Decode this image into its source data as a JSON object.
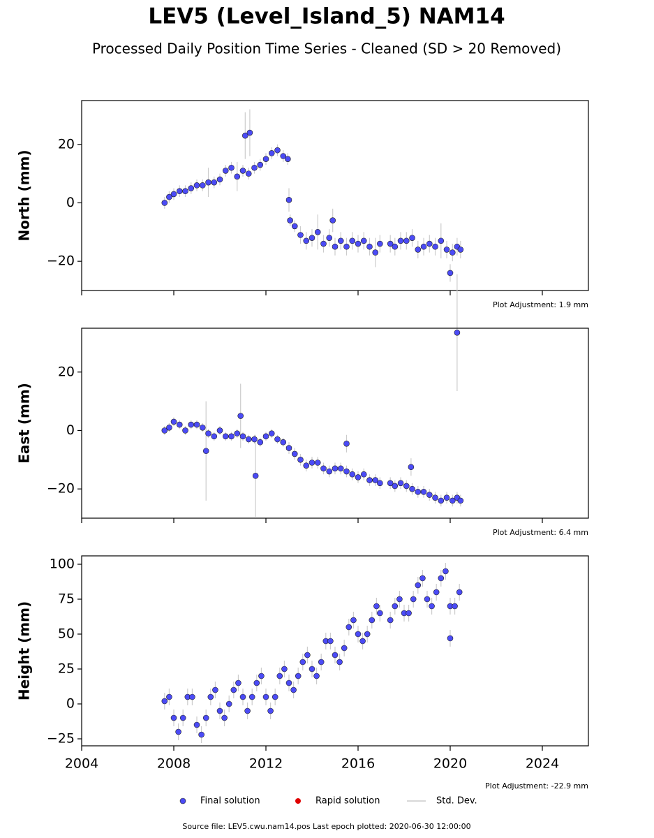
{
  "title": "LEV5 (Level_Island_5) NAM14",
  "subtitle": "Processed Daily Position Time Series - Cleaned (SD > 20 Removed)",
  "legend": [
    {
      "name": "Final solution",
      "color": "#4b4bf5"
    },
    {
      "name": "Rapid solution",
      "color": "#e00000"
    },
    {
      "name": "Std. Dev.",
      "color": "#cccccc"
    }
  ],
  "footer": "Source file: LEV5.cwu.nam14.pos  Last epoch plotted: 2020-06-30 12:00:00",
  "chart_data": [
    {
      "type": "scatter",
      "ylabel": "North (mm)",
      "adjustment": "Plot Adjustment: 1.9 mm",
      "xlim": [
        2004,
        2026
      ],
      "xticks": [
        2004,
        2008,
        2012,
        2016,
        2020,
        2024
      ],
      "ylim": [
        -30,
        35
      ],
      "yticks": [
        {
          "value": -20,
          "label": "−20"
        },
        0,
        20
      ],
      "series": [
        {
          "name": "Final solution",
          "color": "#4b4bf5",
          "x": [
            2007.6,
            2007.8,
            2008.0,
            2008.25,
            2008.5,
            2008.75,
            2009.0,
            2009.25,
            2009.5,
            2009.75,
            2010.0,
            2010.25,
            2010.5,
            2010.75,
            2011.0,
            2011.25,
            2011.5,
            2011.75,
            2012.0,
            2012.25,
            2012.5,
            2012.75,
            2012.95,
            2013.05,
            2013.25,
            2013.5,
            2013.75,
            2014.0,
            2014.25,
            2014.5,
            2014.75,
            2015.0,
            2015.25,
            2015.5,
            2015.75,
            2016.0,
            2016.25,
            2016.5,
            2016.75,
            2016.95,
            2017.4,
            2017.6,
            2017.85,
            2018.1,
            2018.35,
            2018.6,
            2018.85,
            2019.1,
            2019.35,
            2019.6,
            2019.85,
            2020.1,
            2020.3,
            2020.45,
            2011.1,
            2011.3,
            2013.0,
            2020.0,
            2014.9
          ],
          "values": [
            0,
            2,
            3,
            4,
            4,
            5,
            6,
            6,
            7,
            7,
            8,
            11,
            12,
            9,
            11,
            10,
            12,
            13,
            15,
            17,
            18,
            16,
            15,
            -6,
            -8,
            -11,
            -13,
            -12,
            -10,
            -14,
            -12,
            -15,
            -13,
            -15,
            -13,
            -14,
            -13,
            -15,
            -17,
            -14,
            -14,
            -15,
            -13,
            -13,
            -12,
            -16,
            -15,
            -14,
            -15,
            -13,
            -16,
            -17,
            -15,
            -16,
            23,
            24,
            1,
            -24,
            -6
          ],
          "errors": [
            2,
            2,
            2,
            2,
            2,
            2,
            2,
            2,
            5,
            2,
            2,
            2,
            2,
            5,
            2,
            2,
            2,
            2,
            2,
            2,
            2,
            2,
            2,
            2,
            2,
            3,
            3,
            3,
            6,
            3,
            3,
            3,
            3,
            3,
            3,
            3,
            3,
            3,
            5,
            3,
            3,
            3,
            3,
            3,
            3,
            3,
            3,
            3,
            3,
            6,
            3,
            3,
            3,
            3,
            8,
            8,
            4,
            3,
            4
          ]
        }
      ]
    },
    {
      "type": "scatter",
      "ylabel": "East (mm)",
      "adjustment": "Plot Adjustment: 6.4 mm",
      "xlim": [
        2004,
        2026
      ],
      "xticks": [
        2004,
        2008,
        2012,
        2016,
        2020,
        2024
      ],
      "ylim": [
        -30,
        35
      ],
      "yticks": [
        {
          "value": -20,
          "label": "−20"
        },
        0,
        20
      ],
      "series": [
        {
          "name": "Final solution",
          "color": "#4b4bf5",
          "x": [
            2007.6,
            2007.8,
            2008.0,
            2008.25,
            2008.5,
            2008.75,
            2009.0,
            2009.25,
            2009.5,
            2009.75,
            2010.0,
            2010.25,
            2010.5,
            2010.75,
            2011.0,
            2011.25,
            2011.5,
            2011.75,
            2012.0,
            2012.25,
            2012.5,
            2012.75,
            2013.0,
            2013.25,
            2013.5,
            2013.75,
            2014.0,
            2014.25,
            2014.5,
            2014.75,
            2015.0,
            2015.25,
            2015.5,
            2015.75,
            2016.0,
            2016.25,
            2016.5,
            2016.75,
            2016.95,
            2017.4,
            2017.6,
            2017.85,
            2018.1,
            2018.35,
            2018.6,
            2018.85,
            2019.1,
            2019.35,
            2019.6,
            2019.85,
            2020.1,
            2020.3,
            2020.45,
            2009.4,
            2010.9,
            2011.55,
            2020.3,
            2015.5,
            2018.3
          ],
          "values": [
            0,
            1,
            3,
            2,
            0,
            2,
            2,
            1,
            -1,
            -2,
            0,
            -2,
            -2,
            -1,
            -2,
            -3,
            -3,
            -4,
            -2,
            -1,
            -3,
            -4,
            -6,
            -8,
            -10,
            -12,
            -11,
            -11,
            -13,
            -14,
            -13,
            -13,
            -14,
            -15,
            -16,
            -15,
            -17,
            -17,
            -18,
            -18,
            -19,
            -18,
            -19,
            -20,
            -21,
            -21,
            -22,
            -23,
            -24,
            -23,
            -24,
            -23,
            -24,
            -7,
            5,
            -15.5,
            33.5,
            -4.5,
            -12.5
          ],
          "errors": [
            1.5,
            1.5,
            1.5,
            1.5,
            1.5,
            1.5,
            1.5,
            1.5,
            1.5,
            1.5,
            1.5,
            1.5,
            1.5,
            1.5,
            1.5,
            1.5,
            1.5,
            1.5,
            1.5,
            1.5,
            1.5,
            1.5,
            2,
            2,
            2,
            2,
            2,
            2,
            2,
            2,
            2,
            2,
            2,
            2,
            2,
            2,
            2,
            2,
            2,
            2,
            2,
            2,
            2,
            2,
            2,
            2,
            2,
            2,
            2,
            2,
            2,
            2,
            2,
            17,
            11,
            14,
            20,
            3,
            3
          ]
        }
      ]
    },
    {
      "type": "scatter",
      "ylabel": "Height (mm)",
      "adjustment": "Plot Adjustment: -22.9 mm",
      "xlim": [
        2004,
        2026
      ],
      "xticks": [
        2004,
        2008,
        2012,
        2016,
        2020,
        2024
      ],
      "ylim": [
        -30,
        106
      ],
      "yticks": [
        {
          "value": -25,
          "label": "−25"
        },
        0,
        25,
        50,
        75,
        100
      ],
      "series": [
        {
          "name": "Final solution",
          "color": "#4b4bf5",
          "x": [
            2007.6,
            2007.8,
            2008.0,
            2008.2,
            2008.4,
            2008.6,
            2008.8,
            2009.0,
            2009.2,
            2009.4,
            2009.6,
            2009.8,
            2010.0,
            2010.2,
            2010.4,
            2010.6,
            2010.8,
            2011.0,
            2011.2,
            2011.4,
            2011.6,
            2011.8,
            2012.0,
            2012.2,
            2012.4,
            2012.6,
            2012.8,
            2013.0,
            2013.2,
            2013.4,
            2013.6,
            2013.8,
            2014.0,
            2014.2,
            2014.4,
            2014.6,
            2014.8,
            2015.0,
            2015.2,
            2015.4,
            2015.6,
            2015.8,
            2016.0,
            2016.2,
            2016.4,
            2016.6,
            2016.8,
            2016.95,
            2017.4,
            2017.6,
            2017.8,
            2018.0,
            2018.2,
            2018.4,
            2018.6,
            2018.8,
            2019.0,
            2019.2,
            2019.4,
            2019.6,
            2019.8,
            2020.0,
            2020.2,
            2020.4,
            2020.0
          ],
          "values": [
            2,
            5,
            -10,
            -20,
            -10,
            5,
            5,
            -15,
            -22,
            -10,
            5,
            10,
            -5,
            -10,
            0,
            10,
            15,
            5,
            -5,
            5,
            15,
            20,
            5,
            -5,
            5,
            20,
            25,
            15,
            10,
            20,
            30,
            35,
            25,
            20,
            30,
            45,
            45,
            35,
            30,
            40,
            55,
            60,
            50,
            45,
            50,
            60,
            70,
            65,
            60,
            70,
            75,
            65,
            65,
            75,
            85,
            90,
            75,
            70,
            80,
            90,
            95,
            70,
            70,
            80,
            47
          ],
          "errors": [
            6,
            6,
            6,
            6,
            6,
            6,
            6,
            6,
            6,
            6,
            6,
            6,
            6,
            6,
            6,
            6,
            6,
            6,
            6,
            6,
            6,
            6,
            6,
            6,
            6,
            6,
            6,
            6,
            6,
            6,
            6,
            6,
            6,
            6,
            6,
            6,
            6,
            6,
            6,
            6,
            6,
            6,
            6,
            6,
            6,
            6,
            6,
            6,
            6,
            6,
            6,
            6,
            6,
            6,
            6,
            6,
            6,
            6,
            6,
            6,
            6,
            6,
            6,
            6,
            6
          ]
        }
      ]
    }
  ]
}
